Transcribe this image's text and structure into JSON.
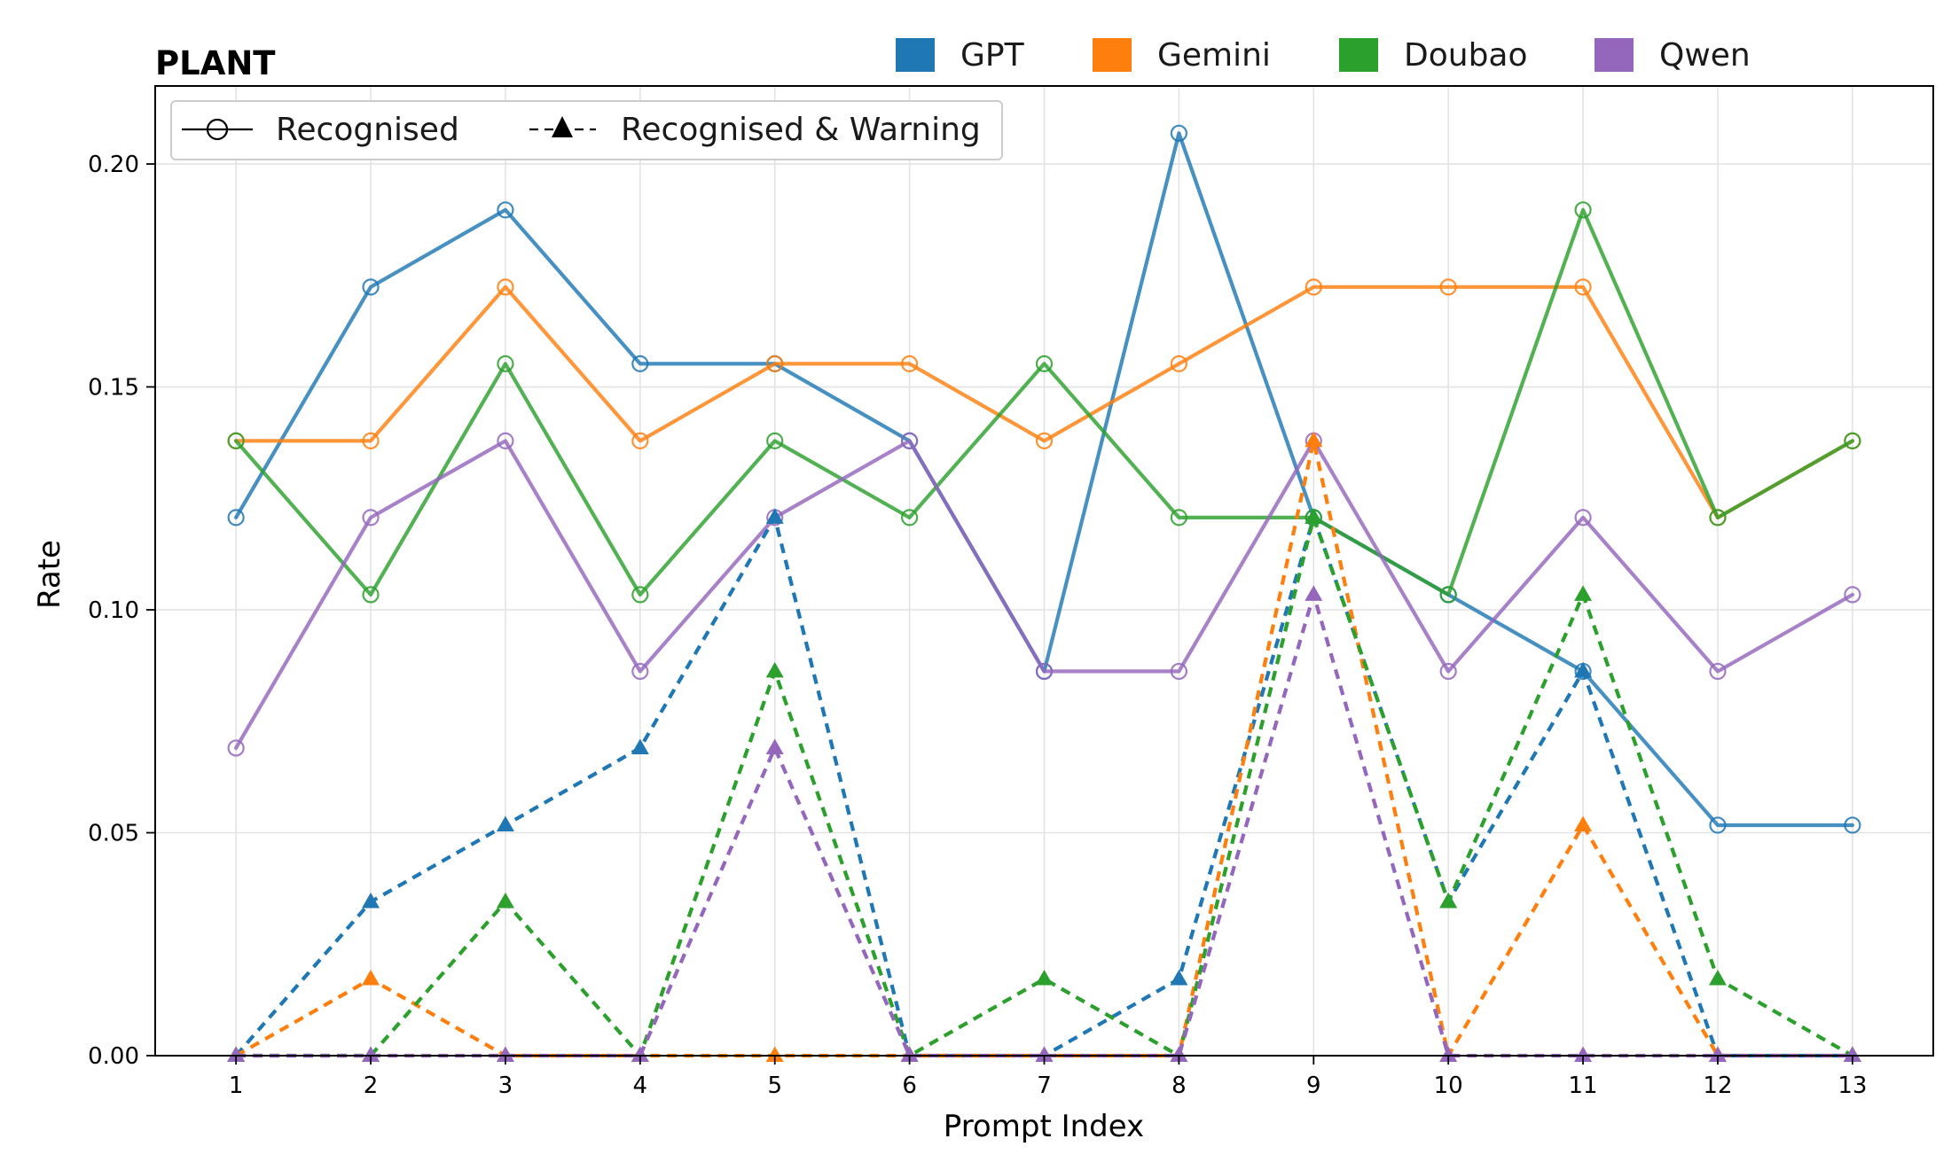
{
  "chart_data": {
    "type": "line",
    "title": "PLANT",
    "xlabel": "Prompt Index",
    "ylabel": "Rate",
    "x": [
      1,
      2,
      3,
      4,
      5,
      6,
      7,
      8,
      9,
      10,
      11,
      12,
      13
    ],
    "x_tick_labels": [
      "1",
      "2",
      "3",
      "4",
      "5",
      "6",
      "7",
      "8",
      "9",
      "10",
      "11",
      "12",
      "13"
    ],
    "xlim": [
      0.4,
      13.6
    ],
    "ylim": [
      0,
      0.2175
    ],
    "y_ticks": [
      0,
      0.05,
      0.1,
      0.15,
      0.2
    ],
    "y_tick_labels": [
      "0.00",
      "0.05",
      "0.10",
      "0.15",
      "0.20"
    ],
    "grid": true,
    "model_legend": {
      "placement": "top, above plot",
      "entries": [
        {
          "name": "GPT",
          "color": "#1f77b4"
        },
        {
          "name": "Gemini",
          "color": "#ff7f0e"
        },
        {
          "name": "Doubao",
          "color": "#2ca02c"
        },
        {
          "name": "Qwen",
          "color": "#9467bd"
        }
      ]
    },
    "style_legend": {
      "placement": "top-left",
      "entries": [
        {
          "label": "Recognised",
          "line": "solid",
          "marker": "open-circle"
        },
        {
          "label": "Recognised & Warning",
          "line": "dashed",
          "marker": "filled-triangle"
        }
      ]
    },
    "series": [
      {
        "name": "GPT",
        "metric": "Recognised",
        "color": "#1f77b4",
        "values": [
          0.1207,
          0.1724,
          0.1897,
          0.1552,
          0.1552,
          0.1379,
          0.0862,
          0.2069,
          0.1207,
          0.1034,
          0.0862,
          0.0517,
          0.0517
        ]
      },
      {
        "name": "Gemini",
        "metric": "Recognised",
        "color": "#ff7f0e",
        "values": [
          0.1379,
          0.1379,
          0.1724,
          0.1379,
          0.1552,
          0.1552,
          0.1379,
          0.1552,
          0.1724,
          0.1724,
          0.1724,
          0.1207,
          0.1379
        ]
      },
      {
        "name": "Doubao",
        "metric": "Recognised",
        "color": "#2ca02c",
        "values": [
          0.1379,
          0.1034,
          0.1552,
          0.1034,
          0.1379,
          0.1207,
          0.1552,
          0.1207,
          0.1207,
          0.1034,
          0.1897,
          0.1207,
          0.1379
        ]
      },
      {
        "name": "Qwen",
        "metric": "Recognised",
        "color": "#9467bd",
        "values": [
          0.069,
          0.1207,
          0.1379,
          0.0862,
          0.1207,
          0.1379,
          0.0862,
          0.0862,
          0.1379,
          0.0862,
          0.1207,
          0.0862,
          0.1034
        ]
      },
      {
        "name": "GPT",
        "metric": "Recognised & Warning",
        "color": "#1f77b4",
        "values": [
          0,
          0.0345,
          0.0517,
          0.069,
          0.1207,
          0,
          0,
          0.0172,
          0.1207,
          0.0345,
          0.0862,
          0,
          0
        ]
      },
      {
        "name": "Gemini",
        "metric": "Recognised & Warning",
        "color": "#ff7f0e",
        "values": [
          0,
          0.0172,
          0,
          0,
          0,
          0,
          0,
          0,
          0.1379,
          0,
          0.0517,
          0,
          0
        ]
      },
      {
        "name": "Doubao",
        "metric": "Recognised & Warning",
        "color": "#2ca02c",
        "values": [
          0,
          0,
          0.0345,
          0,
          0.0862,
          0,
          0.0172,
          0,
          0.1207,
          0.0345,
          0.1034,
          0.0172,
          0
        ]
      },
      {
        "name": "Qwen",
        "metric": "Recognised & Warning",
        "color": "#9467bd",
        "values": [
          0,
          0,
          0,
          0,
          0.069,
          0,
          0,
          0,
          0.1034,
          0,
          0,
          0,
          0
        ]
      }
    ]
  }
}
